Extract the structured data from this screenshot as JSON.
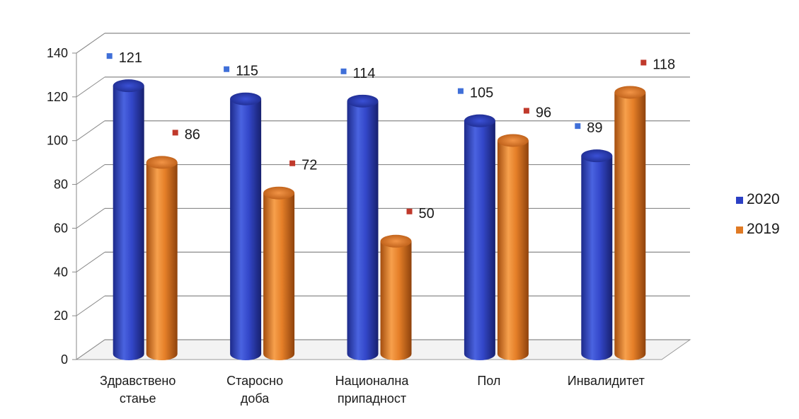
{
  "chart_data": {
    "type": "bar",
    "style": "3d-cylinder",
    "title": "",
    "xlabel": "",
    "ylabel": "",
    "ylim": [
      0,
      140
    ],
    "yticks": [
      0,
      20,
      40,
      60,
      80,
      100,
      120,
      140
    ],
    "grid": true,
    "legend_position": "right",
    "categories": [
      [
        "Здравствено",
        "стање"
      ],
      [
        "Старосно",
        "доба"
      ],
      [
        "Национална",
        "припадност"
      ],
      [
        "Пол"
      ],
      [
        "Инвалидитет"
      ]
    ],
    "series": [
      {
        "name": "2020",
        "color": "#2b3fc4",
        "values": [
          121,
          115,
          114,
          105,
          89
        ]
      },
      {
        "name": "2019",
        "color": "#e07a24",
        "values": [
          86,
          72,
          50,
          96,
          118
        ]
      }
    ],
    "data_label_colors": {
      "2020": "#3f6fd8",
      "2019": "#c0392b"
    }
  }
}
